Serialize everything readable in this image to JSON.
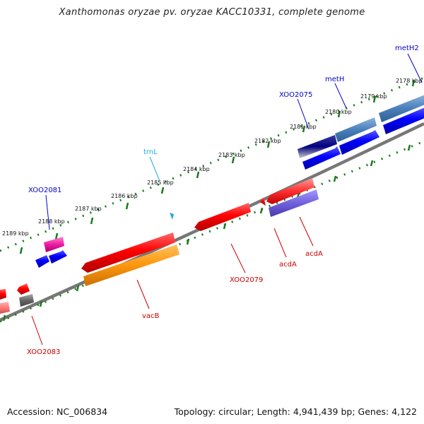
{
  "title": "Xanthomonas oryzae pv. oryzae KACC10331, complete genome",
  "footer": {
    "accession": "Accession: NC_006834",
    "topology": "Topology: circular; Length: 4,941,439 bp; Genes: 4,122"
  },
  "colors": {
    "backbone": "#777777",
    "ticks": "#1a7a1a",
    "forward_label": "#0000cc",
    "reverse_label": "#cc0000",
    "trna_label": "#22aadd"
  },
  "scale_labels": [
    "2178 kbp",
    "2179 kbp",
    "2180 kbp",
    "2181 kbp",
    "2182 kbp",
    "2183 kbp",
    "2184 kbp",
    "2185 kbp",
    "2186 kbp",
    "2187 kbp",
    "2188 kbp",
    "2189 kbp"
  ],
  "gene_labels": {
    "metH2": "metH2",
    "metH": "metH",
    "XOO2075": "XOO2075",
    "trnL": "trnL",
    "XOO2081": "XOO2081",
    "XOO2079": "XOO2079",
    "acdA_1": "acdA",
    "acdA_2": "acdA",
    "vacB": "vacB",
    "XOO2083": "XOO2083"
  }
}
